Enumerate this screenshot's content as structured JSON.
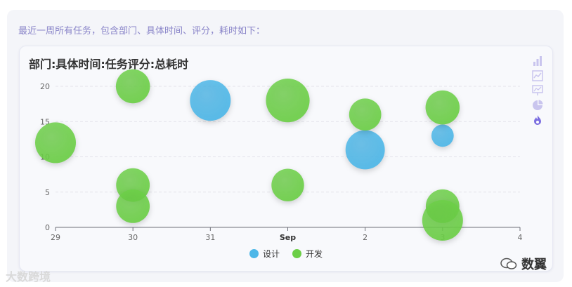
{
  "intro_text": "最近一周所有任务，包含部门、具体时间、评分，耗时如下：",
  "toolbox": {
    "icons": [
      "bar-chart-icon",
      "line-chart-icon",
      "presentation-icon",
      "pie-chart-icon",
      "fire-icon"
    ],
    "color": "#c9c5ee",
    "active_color": "#7b6ee0"
  },
  "colors": {
    "design": "#4db7e8",
    "dev": "#6ccf47"
  },
  "chart_data": {
    "type": "scatter",
    "title": "部门:具体时间:任务评分:总耗时",
    "xlabel": "",
    "ylabel": "",
    "x_ticks": [
      "29",
      "30",
      "31",
      "Sep",
      "2",
      "3",
      "4"
    ],
    "xlim": [
      "2023-08-29",
      "2023-09-04"
    ],
    "ylim": [
      0,
      20
    ],
    "y_ticks": [
      0,
      5,
      10,
      15,
      20
    ],
    "grid": true,
    "legend": "bottom",
    "series": [
      {
        "name": "设计",
        "points": [
          {
            "x": "2023-08-31",
            "y": 18,
            "size": 100
          },
          {
            "x": "2023-09-02",
            "y": 11,
            "size": 93
          },
          {
            "x": "2023-09-03",
            "y": 13,
            "size": 30
          }
        ]
      },
      {
        "name": "开发",
        "points": [
          {
            "x": "2023-08-29",
            "y": 12,
            "size": 100
          },
          {
            "x": "2023-08-30",
            "y": 20,
            "size": 70
          },
          {
            "x": "2023-08-30",
            "y": 6,
            "size": 68
          },
          {
            "x": "2023-08-30",
            "y": 3,
            "size": 68
          },
          {
            "x": "2023-09-01",
            "y": 18,
            "size": 115
          },
          {
            "x": "2023-09-01",
            "y": 6,
            "size": 64
          },
          {
            "x": "2023-09-02",
            "y": 16,
            "size": 62
          },
          {
            "x": "2023-09-03",
            "y": 17,
            "size": 70
          },
          {
            "x": "2023-09-03",
            "y": 3,
            "size": 68
          },
          {
            "x": "2023-09-03",
            "y": 1,
            "size": 100
          }
        ]
      }
    ]
  },
  "watermark_left": "大数跨境",
  "watermark_right": "数翼"
}
